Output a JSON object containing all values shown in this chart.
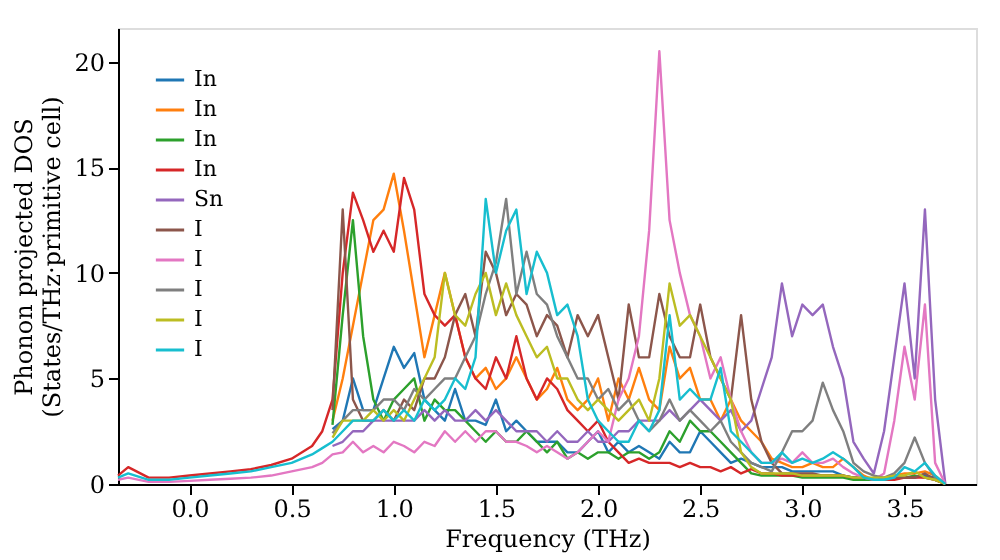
{
  "chart_data": {
    "type": "line",
    "xlabel": "Frequency (THz)",
    "ylabel": "Phonon projected DOS\n(States/THz·primitive cell)",
    "xlim": [
      -0.35,
      3.85
    ],
    "ylim": [
      0,
      21.6
    ],
    "xticks": [
      {
        "value": 0,
        "label": "0.0"
      },
      0.5,
      {
        "value": 1,
        "label": "1.0"
      },
      1.5,
      {
        "value": 2,
        "label": "2.0"
      },
      2.5,
      {
        "value": 3,
        "label": "3.0"
      },
      3.5
    ],
    "yticks": [
      0,
      5,
      10,
      15,
      20
    ],
    "grid": false,
    "legend": "top left",
    "marker": "none",
    "line_style": "solid",
    "x": [
      -0.35,
      -0.3,
      -0.2,
      -0.1,
      0,
      0.1,
      0.2,
      0.3,
      0.4,
      0.5,
      0.6,
      0.65,
      0.7,
      0.75,
      0.8,
      0.85,
      0.9,
      0.95,
      1.0,
      1.05,
      1.1,
      1.15,
      1.2,
      1.25,
      1.3,
      1.35,
      1.4,
      1.45,
      1.5,
      1.55,
      1.6,
      1.65,
      1.7,
      1.75,
      1.8,
      1.85,
      1.9,
      1.95,
      2.0,
      2.05,
      2.1,
      2.15,
      2.2,
      2.25,
      2.3,
      2.35,
      2.4,
      2.45,
      2.5,
      2.55,
      2.6,
      2.65,
      2.7,
      2.75,
      2.8,
      2.85,
      2.9,
      2.95,
      3.0,
      3.05,
      3.1,
      3.15,
      3.2,
      3.25,
      3.3,
      3.35,
      3.4,
      3.45,
      3.5,
      3.55,
      3.6,
      3.65,
      3.7
    ],
    "series": [
      {
        "name": "In",
        "color": "#1f77b4",
        "values": [
          null,
          null,
          null,
          null,
          null,
          null,
          null,
          null,
          null,
          null,
          null,
          null,
          2.6,
          3,
          5,
          3.5,
          3.5,
          5,
          6.5,
          5.5,
          6.2,
          4,
          3.5,
          3,
          4.5,
          3,
          3,
          2.8,
          4,
          2.5,
          3,
          2.5,
          2,
          2,
          2,
          1.5,
          1.5,
          2,
          2.5,
          1.5,
          2,
          1.5,
          1.8,
          1.5,
          1.2,
          2,
          1.5,
          1.5,
          2.5,
          2,
          1.5,
          1,
          1.2,
          1,
          0.8,
          0.8,
          0.8,
          0.6,
          0.6,
          0.6,
          0.6,
          0.6,
          0.4,
          0.3,
          0.3,
          0.2,
          0.2,
          0.3,
          0.3,
          0.3,
          0.4,
          0.3,
          0
        ]
      },
      {
        "name": "In",
        "color": "#ff7f0e",
        "values": [
          null,
          null,
          null,
          null,
          null,
          null,
          null,
          null,
          null,
          null,
          null,
          null,
          3.0,
          5,
          7.5,
          10,
          12.5,
          13,
          14.7,
          12,
          9,
          6,
          8,
          10,
          8,
          6,
          5,
          5.5,
          4.5,
          5,
          6,
          5,
          4,
          4.5,
          5.5,
          4,
          3.5,
          4,
          5,
          3,
          5,
          4,
          5.5,
          4,
          3.5,
          6.5,
          5,
          5.5,
          4,
          4,
          3,
          4,
          3,
          2.5,
          2,
          1.2,
          1,
          0.8,
          0.8,
          1,
          0.8,
          0.8,
          1.2,
          0.8,
          0.4,
          0.2,
          0.3,
          0.4,
          0.5,
          0.5,
          0.6,
          0.4,
          0
        ]
      },
      {
        "name": "In",
        "color": "#2ca02c",
        "values": [
          null,
          null,
          null,
          null,
          null,
          null,
          null,
          null,
          null,
          null,
          null,
          null,
          2.8,
          8,
          12.5,
          7,
          4,
          3,
          4,
          4.5,
          5,
          3,
          4,
          3.5,
          3.5,
          3,
          2.5,
          2,
          2.5,
          2,
          2,
          2.5,
          2,
          1.5,
          2,
          1.2,
          1.5,
          1.2,
          1.5,
          1.5,
          1.2,
          1.5,
          1.5,
          1.2,
          1.5,
          2.5,
          2,
          3,
          2.5,
          2.5,
          2,
          1.5,
          1,
          0.5,
          0.4,
          0.4,
          0.4,
          0.4,
          0.3,
          0.3,
          0.3,
          0.3,
          0.3,
          0.2,
          0.2,
          0.2,
          0.2,
          0.3,
          0.3,
          0.4,
          0.3,
          0.2,
          0
        ]
      },
      {
        "name": "In",
        "color": "#d62728",
        "values": [
          0.4,
          0.8,
          0.3,
          0.3,
          0.4,
          0.5,
          0.6,
          0.7,
          0.9,
          1.2,
          1.8,
          2.5,
          4,
          10,
          13.8,
          12.5,
          11,
          12,
          11,
          14.5,
          13,
          9,
          8,
          7.5,
          8,
          6,
          5,
          4.5,
          6,
          5,
          7,
          5,
          4,
          5,
          4.5,
          3.5,
          3,
          2.5,
          3,
          2,
          1.5,
          1,
          1.2,
          1,
          1,
          1,
          0.8,
          1,
          0.8,
          0.8,
          0.6,
          0.8,
          0.5,
          0.7,
          0.5,
          0.5,
          0.4,
          0.4,
          0.4,
          0.4,
          0.4,
          0.4,
          0.4,
          0.3,
          0.3,
          0.2,
          0.2,
          0.2,
          0.3,
          0.3,
          0.3,
          0.2,
          0
        ]
      },
      {
        "name": "Sn",
        "color": "#9467bd",
        "values": [
          null,
          null,
          null,
          null,
          null,
          null,
          null,
          null,
          null,
          null,
          null,
          null,
          1.8,
          2,
          2.5,
          2.5,
          3,
          3,
          3,
          3,
          3,
          3.5,
          3,
          3.5,
          3,
          3,
          3.5,
          3,
          3.5,
          3,
          2.5,
          2.5,
          2.5,
          2,
          2.5,
          2,
          2,
          2.5,
          2,
          2,
          2.5,
          2.5,
          3,
          3,
          3,
          3.5,
          3,
          3.5,
          4,
          3.5,
          3,
          3.5,
          2.5,
          3,
          4.5,
          6,
          9.5,
          7,
          8.5,
          8,
          8.5,
          6.5,
          5,
          2,
          1.2,
          0.5,
          2.5,
          6,
          9.5,
          5,
          13,
          4,
          0
        ]
      },
      {
        "name": "I",
        "color": "#8c564b",
        "values": [
          null,
          null,
          null,
          null,
          null,
          null,
          null,
          null,
          null,
          null,
          null,
          null,
          3.5,
          13,
          4,
          3,
          3,
          3.5,
          3,
          4,
          3.5,
          5,
          5,
          6,
          8,
          9,
          7,
          11,
          10,
          8,
          9,
          8.5,
          7,
          8,
          7.5,
          6,
          8,
          7,
          8,
          6,
          4,
          8.5,
          6,
          6,
          9,
          7,
          6,
          6,
          8.5,
          6,
          5,
          4,
          8,
          4,
          2,
          1,
          0.5,
          0.5,
          0.5,
          0.5,
          0.4,
          0.4,
          0.4,
          0.3,
          0.3,
          0.2,
          0.2,
          0.3,
          0.3,
          0.3,
          0.5,
          0.2,
          0
        ]
      },
      {
        "name": "I",
        "color": "#e377c2",
        "values": [
          0.2,
          0.3,
          0.1,
          0.1,
          0.15,
          0.2,
          0.25,
          0.3,
          0.4,
          0.6,
          0.8,
          1.0,
          1.4,
          1.5,
          2,
          1.5,
          1.8,
          1.5,
          2,
          1.8,
          1.5,
          2,
          1.8,
          2.5,
          2,
          2.5,
          2,
          2.5,
          2.5,
          2,
          2,
          1.8,
          1.5,
          1.8,
          1.5,
          1.2,
          1.5,
          2,
          2.5,
          2,
          4,
          5,
          7,
          12,
          20.5,
          12.5,
          10,
          8,
          7,
          5,
          6,
          4,
          2.5,
          1.5,
          1,
          1,
          1.2,
          1,
          1.5,
          1,
          1,
          1.2,
          0.8,
          0.5,
          0.3,
          0.2,
          0.5,
          3,
          6.5,
          4,
          8.5,
          1,
          0
        ]
      },
      {
        "name": "I",
        "color": "#7f7f7f",
        "values": [
          null,
          null,
          null,
          null,
          null,
          null,
          null,
          null,
          null,
          null,
          null,
          null,
          2.4,
          3,
          3.5,
          3.5,
          3.5,
          4,
          4,
          3.5,
          4.5,
          4,
          4.5,
          5,
          5,
          6,
          7,
          9,
          10.5,
          13.5,
          9,
          11,
          9,
          8.5,
          7,
          6,
          5,
          5,
          4,
          4.5,
          3.5,
          4,
          3,
          2.5,
          3,
          4,
          3,
          3.5,
          3,
          2.5,
          3,
          2,
          1.5,
          1,
          0.8,
          0.6,
          1.5,
          2.5,
          2.5,
          3,
          4.8,
          3.5,
          2.5,
          1,
          0.6,
          0.4,
          0.3,
          0.5,
          1,
          2.2,
          1,
          0.3,
          0
        ]
      },
      {
        "name": "I",
        "color": "#bcbd22",
        "values": [
          null,
          null,
          null,
          null,
          null,
          null,
          null,
          null,
          null,
          null,
          null,
          null,
          2.2,
          3,
          3,
          3,
          3.5,
          3,
          3.5,
          3,
          4,
          5,
          6,
          10,
          8,
          7.5,
          9,
          10,
          8,
          9.5,
          8,
          7,
          6,
          6.5,
          5,
          5,
          4,
          3.5,
          4,
          3.5,
          3,
          3.5,
          4,
          3,
          5,
          9.5,
          7.5,
          8,
          7,
          6,
          5,
          4,
          1.5,
          0.8,
          0.5,
          0.5,
          0.5,
          0.5,
          0.4,
          0.4,
          0.4,
          0.4,
          0.4,
          0.3,
          0.3,
          0.3,
          0.3,
          0.4,
          0.4,
          0.6,
          0.3,
          0.2,
          0
        ]
      },
      {
        "name": "I",
        "color": "#17becf",
        "values": [
          0.3,
          0.5,
          0.2,
          0.2,
          0.3,
          0.4,
          0.5,
          0.6,
          0.8,
          1.0,
          1.4,
          1.7,
          2.0,
          2.5,
          3,
          3,
          3,
          3.5,
          3,
          3.5,
          3,
          4,
          3.5,
          4,
          5,
          4.5,
          6,
          13.5,
          10,
          12,
          13,
          9,
          11,
          10,
          8,
          8.5,
          7,
          4,
          3,
          2.5,
          2,
          2,
          3,
          2.5,
          3.5,
          8,
          4,
          4.5,
          4,
          4,
          5.5,
          2.5,
          2,
          1.5,
          1,
          1,
          1.5,
          1,
          1.2,
          1,
          1.2,
          1.5,
          1.2,
          0.8,
          0.3,
          0.2,
          0.2,
          0.3,
          0.8,
          0.6,
          1,
          0.4,
          0
        ]
      }
    ]
  }
}
